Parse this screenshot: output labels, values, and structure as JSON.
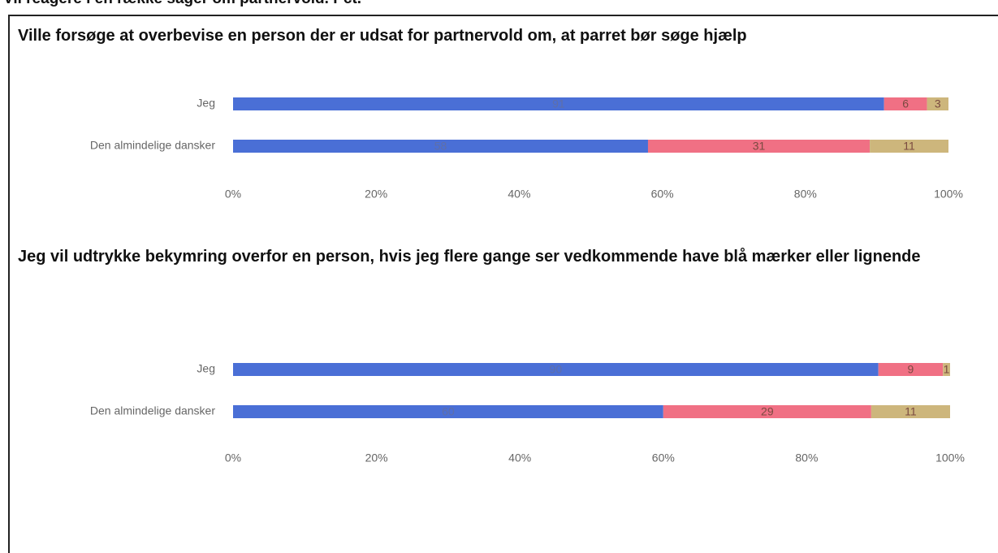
{
  "header": "Vil reagere i en række sager om partnervold. Pct.",
  "chart_data": [
    {
      "type": "stacked_barh",
      "title": "Ville forsøge at overbevise en person der er udsat for partnervold om, at parret bør søge hjælp",
      "categories": [
        "Jeg",
        "Den almindelige dansker"
      ],
      "series": [
        {
          "color": "#4a6fd6",
          "values": [
            91,
            58
          ]
        },
        {
          "color": "#f07084",
          "values": [
            6,
            31
          ]
        },
        {
          "color": "#cdb67c",
          "values": [
            3,
            11
          ]
        }
      ],
      "xlim": [
        0,
        100
      ],
      "xticks": [
        {
          "value": 0,
          "label": "0%"
        },
        {
          "value": 20,
          "label": "20%"
        },
        {
          "value": 40,
          "label": "40%"
        },
        {
          "value": 60,
          "label": "60%"
        },
        {
          "value": 80,
          "label": "80%"
        },
        {
          "value": 100,
          "label": "100%"
        }
      ]
    },
    {
      "type": "stacked_barh",
      "title": "Jeg vil udtrykke bekymring overfor en person, hvis jeg flere gange ser vedkommende have blå mærker eller lignende",
      "categories": [
        "Jeg",
        "Den almindelige dansker"
      ],
      "series": [
        {
          "color": "#4a6fd6",
          "values": [
            90,
            60
          ]
        },
        {
          "color": "#f07084",
          "values": [
            9,
            29
          ]
        },
        {
          "color": "#cdb67c",
          "values": [
            1,
            11
          ]
        }
      ],
      "xlim": [
        0,
        100
      ],
      "xticks": [
        {
          "value": 0,
          "label": "0%"
        },
        {
          "value": 20,
          "label": "20%"
        },
        {
          "value": 40,
          "label": "40%"
        },
        {
          "value": 60,
          "label": "60%"
        },
        {
          "value": 80,
          "label": "80%"
        },
        {
          "value": 100,
          "label": "100%"
        }
      ]
    }
  ]
}
